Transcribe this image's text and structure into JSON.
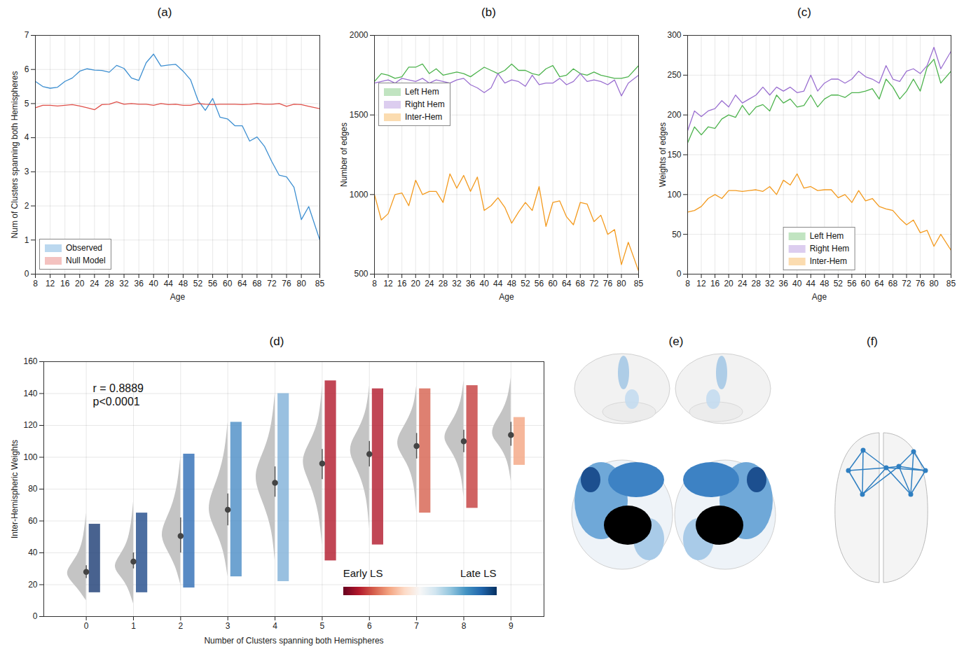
{
  "chart_data": [
    {
      "type": "line",
      "title": "(a)",
      "xlabel": "Age",
      "ylabel": "Num of Clusters spanning both Hemispheres",
      "x": [
        8,
        10,
        12,
        14,
        16,
        18,
        20,
        22,
        24,
        26,
        28,
        30,
        32,
        34,
        36,
        38,
        40,
        42,
        44,
        46,
        48,
        50,
        52,
        54,
        56,
        58,
        60,
        62,
        64,
        66,
        68,
        70,
        72,
        74,
        76,
        78,
        80,
        82,
        85
      ],
      "series": [
        {
          "name": "Observed",
          "color": "#3d8fd1",
          "values": [
            5.65,
            5.5,
            5.45,
            5.48,
            5.65,
            5.75,
            5.95,
            6.02,
            5.98,
            5.97,
            5.92,
            6.12,
            6.03,
            5.75,
            5.68,
            6.2,
            6.45,
            6.1,
            6.13,
            6.15,
            5.95,
            5.7,
            5.1,
            4.8,
            5.15,
            4.6,
            4.55,
            4.35,
            4.35,
            3.9,
            4.02,
            3.75,
            3.3,
            2.9,
            2.85,
            2.55,
            1.6,
            1.98,
            1.0
          ]
        },
        {
          "name": "Null Model",
          "color": "#e0504a",
          "values": [
            4.88,
            4.95,
            4.95,
            4.93,
            4.95,
            4.97,
            4.93,
            4.88,
            4.82,
            4.97,
            4.98,
            5.05,
            4.98,
            5.0,
            4.98,
            4.98,
            4.95,
            5.0,
            4.97,
            4.98,
            4.95,
            4.95,
            5.0,
            4.98,
            4.97,
            4.98,
            4.98,
            4.98,
            4.97,
            4.98,
            5.0,
            4.98,
            4.98,
            5.0,
            4.92,
            4.98,
            4.97,
            4.92,
            4.85
          ]
        }
      ],
      "xlim": [
        8,
        85
      ],
      "xticks": [
        8,
        12,
        16,
        20,
        24,
        28,
        32,
        36,
        40,
        44,
        48,
        52,
        56,
        60,
        64,
        68,
        72,
        76,
        80,
        85
      ],
      "ylim": [
        0,
        7
      ],
      "yticks": [
        0,
        1,
        2,
        3,
        4,
        5,
        6,
        7
      ],
      "grid": true,
      "legend": "lower left"
    },
    {
      "type": "line",
      "title": "(b)",
      "xlabel": "Age",
      "ylabel": "Number of edges",
      "x": [
        8,
        10,
        12,
        14,
        16,
        18,
        20,
        22,
        24,
        26,
        28,
        30,
        32,
        34,
        36,
        38,
        40,
        42,
        44,
        46,
        48,
        50,
        52,
        54,
        56,
        58,
        60,
        62,
        64,
        66,
        68,
        70,
        72,
        74,
        76,
        78,
        80,
        82,
        85
      ],
      "series": [
        {
          "name": "Left Hem",
          "color": "#4db34d",
          "values": [
            1710,
            1760,
            1750,
            1730,
            1740,
            1800,
            1800,
            1820,
            1760,
            1790,
            1750,
            1760,
            1770,
            1760,
            1740,
            1770,
            1800,
            1780,
            1760,
            1780,
            1820,
            1780,
            1780,
            1760,
            1750,
            1790,
            1810,
            1740,
            1750,
            1790,
            1760,
            1750,
            1770,
            1750,
            1740,
            1730,
            1730,
            1740,
            1810
          ]
        },
        {
          "name": "Right Hem",
          "color": "#9a6fd0",
          "values": [
            1700,
            1710,
            1720,
            1700,
            1730,
            1720,
            1710,
            1730,
            1700,
            1720,
            1710,
            1700,
            1720,
            1730,
            1690,
            1670,
            1640,
            1670,
            1760,
            1700,
            1720,
            1710,
            1680,
            1750,
            1690,
            1700,
            1700,
            1730,
            1690,
            1710,
            1760,
            1710,
            1720,
            1710,
            1690,
            1720,
            1620,
            1700,
            1750
          ]
        },
        {
          "name": "Inter-Hem",
          "color": "#f39a1e",
          "values": [
            1000,
            840,
            880,
            1000,
            1010,
            930,
            1090,
            1000,
            1020,
            1020,
            950,
            1130,
            1040,
            1120,
            1020,
            1110,
            900,
            930,
            980,
            920,
            820,
            890,
            950,
            900,
            1050,
            800,
            950,
            960,
            860,
            810,
            950,
            940,
            830,
            870,
            750,
            780,
            560,
            700,
            520
          ]
        }
      ],
      "xlim": [
        8,
        85
      ],
      "xticks": [
        8,
        12,
        16,
        20,
        24,
        28,
        32,
        36,
        40,
        44,
        48,
        52,
        56,
        60,
        64,
        68,
        72,
        76,
        80,
        85
      ],
      "ylim": [
        500,
        2000
      ],
      "yticks": [
        500,
        1000,
        1500,
        2000
      ],
      "grid": true,
      "legend": "center left"
    },
    {
      "type": "line",
      "title": "(c)",
      "xlabel": "Age",
      "ylabel": "Weights of edges",
      "x": [
        8,
        10,
        12,
        14,
        16,
        18,
        20,
        22,
        24,
        26,
        28,
        30,
        32,
        34,
        36,
        38,
        40,
        42,
        44,
        46,
        48,
        50,
        52,
        54,
        56,
        58,
        60,
        62,
        64,
        66,
        68,
        70,
        72,
        74,
        76,
        78,
        80,
        82,
        85
      ],
      "series": [
        {
          "name": "Left Hem",
          "color": "#4db34d",
          "values": [
            165,
            185,
            175,
            185,
            183,
            195,
            200,
            197,
            212,
            200,
            210,
            213,
            205,
            225,
            215,
            220,
            210,
            212,
            225,
            210,
            220,
            225,
            225,
            222,
            228,
            228,
            230,
            233,
            220,
            245,
            235,
            220,
            230,
            245,
            230,
            260,
            270,
            240,
            255
          ]
        },
        {
          "name": "Right Hem",
          "color": "#9a6fd0",
          "values": [
            180,
            205,
            198,
            205,
            208,
            218,
            210,
            225,
            215,
            220,
            225,
            235,
            225,
            235,
            230,
            235,
            228,
            230,
            250,
            230,
            240,
            245,
            245,
            240,
            245,
            255,
            248,
            245,
            240,
            262,
            245,
            242,
            255,
            258,
            252,
            262,
            285,
            258,
            280
          ]
        },
        {
          "name": "Inter-Hem",
          "color": "#f39a1e",
          "values": [
            78,
            80,
            85,
            95,
            100,
            95,
            105,
            105,
            104,
            105,
            106,
            104,
            110,
            100,
            118,
            112,
            126,
            108,
            110,
            105,
            106,
            106,
            96,
            100,
            90,
            105,
            92,
            95,
            85,
            82,
            80,
            70,
            62,
            68,
            52,
            55,
            35,
            50,
            30
          ]
        }
      ],
      "xlim": [
        8,
        85
      ],
      "xticks": [
        8,
        12,
        16,
        20,
        24,
        28,
        32,
        36,
        40,
        44,
        48,
        52,
        56,
        60,
        64,
        68,
        72,
        76,
        80,
        85
      ],
      "ylim": [
        0,
        300
      ],
      "yticks": [
        0,
        50,
        100,
        150,
        200,
        250,
        300
      ],
      "grid": true,
      "legend": "lower center"
    },
    {
      "type": "raincloud",
      "title": "(d)",
      "xlabel": "Number of Clusters spanning both Hemispheres",
      "ylabel": "Inter-Hemispheric Weights",
      "xlim": [
        -0.9,
        9.7
      ],
      "xticks": [
        0,
        1,
        2,
        3,
        4,
        5,
        6,
        7,
        8,
        9
      ],
      "ylim": [
        0,
        160
      ],
      "yticks": [
        0,
        20,
        40,
        60,
        80,
        100,
        120,
        140,
        160
      ],
      "grid": true,
      "color": "#c4c4c4",
      "annotations": [
        "r = 0.8889",
        "p<0.0001"
      ],
      "colorbar": {
        "labels": [
          "Early LS",
          "Late LS"
        ],
        "colors": [
          "#67001f",
          "#b2182b",
          "#d6604d",
          "#f4a582",
          "#fddbc7",
          "#f7f7f7",
          "#d1e5f0",
          "#92c5de",
          "#4393c3",
          "#2166ac",
          "#053061"
        ]
      },
      "groups": [
        {
          "category": 0,
          "mean": 28,
          "error_low": 24,
          "error_high": 32,
          "min": 15,
          "max": 58,
          "cloud_color": "#1a3b73",
          "density_y": [
            10,
            18,
            24,
            28,
            33,
            40,
            50,
            65
          ],
          "density": [
            0,
            0.45,
            0.9,
            1,
            0.75,
            0.35,
            0.12,
            0
          ]
        },
        {
          "category": 1,
          "mean": 34.5,
          "error_low": 30,
          "error_high": 40,
          "min": 15,
          "max": 65,
          "cloud_color": "#1f4a8a",
          "density_y": [
            8,
            20,
            27,
            32,
            38,
            46,
            58,
            72
          ],
          "density": [
            0,
            0.3,
            0.8,
            1,
            0.7,
            0.3,
            0.1,
            0
          ]
        },
        {
          "category": 2,
          "mean": 50.5,
          "error_low": 40,
          "error_high": 62,
          "min": 18,
          "max": 102,
          "cloud_color": "#2e6db5",
          "density_y": [
            20,
            32,
            42,
            50,
            58,
            68,
            82,
            100
          ],
          "density": [
            0,
            0.25,
            0.7,
            1,
            0.85,
            0.45,
            0.15,
            0
          ]
        },
        {
          "category": 3,
          "mean": 67,
          "error_low": 57,
          "error_high": 77,
          "min": 25,
          "max": 122,
          "cloud_color": "#4a8cc6",
          "density_y": [
            25,
            42,
            55,
            65,
            75,
            88,
            105,
            122
          ],
          "density": [
            0,
            0.2,
            0.65,
            1,
            0.9,
            0.45,
            0.12,
            0
          ]
        },
        {
          "category": 4,
          "mean": 84,
          "error_low": 75,
          "error_high": 94,
          "min": 22,
          "max": 140,
          "cloud_color": "#7fb0d8",
          "density_y": [
            35,
            55,
            70,
            82,
            92,
            105,
            120,
            140
          ],
          "density": [
            0,
            0.15,
            0.55,
            0.95,
            1,
            0.5,
            0.15,
            0
          ]
        },
        {
          "category": 5,
          "mean": 96,
          "error_low": 86,
          "error_high": 105,
          "min": 35,
          "max": 148,
          "cloud_color": "#b2182b",
          "density_y": [
            45,
            65,
            82,
            94,
            102,
            112,
            125,
            145
          ],
          "density": [
            0,
            0.15,
            0.55,
            1,
            0.95,
            0.5,
            0.12,
            0
          ]
        },
        {
          "category": 6,
          "mean": 102,
          "error_low": 94,
          "error_high": 110,
          "min": 45,
          "max": 143,
          "cloud_color": "#b2182b",
          "density_y": [
            55,
            75,
            90,
            100,
            108,
            118,
            130,
            145
          ],
          "density": [
            0,
            0.12,
            0.5,
            0.95,
            1,
            0.5,
            0.12,
            0
          ]
        },
        {
          "category": 7,
          "mean": 107,
          "error_low": 99,
          "error_high": 115,
          "min": 65,
          "max": 143,
          "cloud_color": "#d6604d",
          "density_y": [
            65,
            85,
            97,
            105,
            112,
            122,
            132,
            145
          ],
          "density": [
            0,
            0.12,
            0.5,
            0.95,
            1,
            0.5,
            0.12,
            0
          ]
        },
        {
          "category": 8,
          "mean": 110,
          "error_low": 103,
          "error_high": 117,
          "min": 68,
          "max": 145,
          "cloud_color": "#c43c3c",
          "density_y": [
            75,
            90,
            102,
            110,
            116,
            125,
            135,
            148
          ],
          "density": [
            0,
            0.12,
            0.5,
            1,
            0.95,
            0.45,
            0.12,
            0
          ]
        },
        {
          "category": 9,
          "mean": 114,
          "error_low": 107,
          "error_high": 122,
          "min": 95,
          "max": 125,
          "cloud_color": "#f4a582",
          "density_y": [
            85,
            98,
            107,
            113,
            120,
            128,
            138,
            150
          ],
          "density": [
            0,
            0.15,
            0.55,
            1,
            0.9,
            0.45,
            0.12,
            0
          ]
        }
      ]
    }
  ],
  "figures": [
    {
      "title": "(e)"
    },
    {
      "title": "(f)"
    }
  ]
}
